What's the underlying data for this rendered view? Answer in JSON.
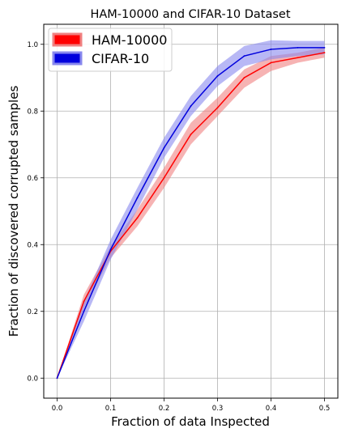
{
  "chart_data": {
    "type": "line",
    "title": "HAM-10000 and CIFAR-10 Dataset",
    "xlabel": "Fraction of data Inspected",
    "ylabel": "Fraction of discovered corrupted samples",
    "xlim": [
      -0.025,
      0.525
    ],
    "ylim": [
      -0.06,
      1.06
    ],
    "xticks": [
      "0.0",
      "0.1",
      "0.2",
      "0.3",
      "0.4",
      "0.5"
    ],
    "yticks": [
      "0.0",
      "0.2",
      "0.4",
      "0.6",
      "0.8",
      "1.0"
    ],
    "grid": true,
    "legend_position": "top-left",
    "x": [
      0.0,
      0.05,
      0.1,
      0.15,
      0.2,
      0.25,
      0.3,
      0.35,
      0.4,
      0.45,
      0.5
    ],
    "series": [
      {
        "name": "HAM-10000",
        "color": "#ff0000",
        "band_color": "#f08080",
        "values": [
          0.0,
          0.23,
          0.38,
          0.48,
          0.6,
          0.73,
          0.81,
          0.9,
          0.945,
          0.96,
          0.975
        ],
        "lower": [
          0.0,
          0.21,
          0.36,
          0.455,
          0.57,
          0.7,
          0.785,
          0.87,
          0.92,
          0.945,
          0.96
        ],
        "upper": [
          0.0,
          0.25,
          0.395,
          0.505,
          0.63,
          0.765,
          0.84,
          0.925,
          0.965,
          0.975,
          0.99
        ]
      },
      {
        "name": "CIFAR-10",
        "color": "#0000dd",
        "band_color": "#8888ee",
        "values": [
          0.0,
          0.2,
          0.385,
          0.54,
          0.69,
          0.815,
          0.905,
          0.965,
          0.985,
          0.99,
          0.99
        ],
        "lower": [
          0.0,
          0.17,
          0.355,
          0.505,
          0.66,
          0.785,
          0.875,
          0.935,
          0.955,
          0.965,
          0.97
        ],
        "upper": [
          0.0,
          0.23,
          0.415,
          0.57,
          0.72,
          0.845,
          0.935,
          0.995,
          1.012,
          1.01,
          1.01
        ]
      }
    ]
  }
}
